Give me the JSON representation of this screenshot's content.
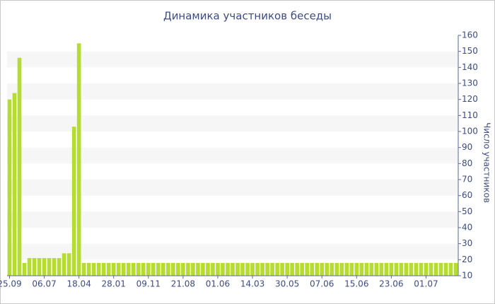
{
  "chart_data": {
    "type": "bar",
    "title": "Динамика участников беседы",
    "y_label": "Число участников",
    "categories": [
      "25.09",
      null,
      null,
      null,
      null,
      null,
      null,
      "06.07",
      null,
      null,
      null,
      null,
      null,
      null,
      "18.04",
      null,
      null,
      null,
      null,
      null,
      null,
      "28.01",
      null,
      null,
      null,
      null,
      null,
      null,
      "09.11",
      null,
      null,
      null,
      null,
      null,
      null,
      "21.08",
      null,
      null,
      null,
      null,
      null,
      null,
      "01.06",
      null,
      null,
      null,
      null,
      null,
      null,
      "14.03",
      null,
      null,
      null,
      null,
      null,
      null,
      "30.05",
      null,
      null,
      null,
      null,
      null,
      null,
      "07.06",
      null,
      null,
      null,
      null,
      null,
      null,
      "15.06",
      null,
      null,
      null,
      null,
      null,
      null,
      "23.06",
      null,
      null,
      null,
      null,
      null,
      null,
      "01.07",
      null,
      null,
      null,
      null,
      null,
      null
    ],
    "values": [
      120,
      124,
      146,
      18,
      21,
      21,
      21,
      21,
      21,
      21,
      21,
      24,
      24,
      103,
      155,
      18,
      18,
      18,
      18,
      18,
      18,
      18,
      18,
      18,
      18,
      18,
      18,
      18,
      18,
      18,
      18,
      18,
      18,
      18,
      18,
      18,
      18,
      18,
      18,
      18,
      18,
      18,
      18,
      18,
      18,
      18,
      18,
      18,
      18,
      18,
      18,
      18,
      18,
      18,
      18,
      18,
      18,
      18,
      18,
      18,
      18,
      18,
      18,
      18,
      18,
      18,
      18,
      18,
      18,
      18,
      18,
      18,
      18,
      18,
      18,
      18,
      18,
      18,
      18,
      18,
      18,
      18,
      18,
      18,
      18,
      18,
      18,
      18,
      18,
      18,
      18
    ],
    "color": "#b5dc2e",
    "ylim": [
      10,
      160
    ],
    "yticks": [
      10,
      20,
      30,
      40,
      50,
      60,
      70,
      80,
      90,
      100,
      110,
      120,
      130,
      140,
      150,
      160
    ],
    "grid": true
  }
}
